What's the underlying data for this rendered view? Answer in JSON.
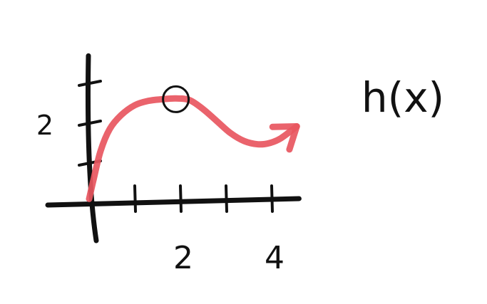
{
  "chart_data": {
    "type": "line",
    "title": "",
    "xlabel": "",
    "ylabel": "",
    "xlim": [
      0,
      4.6
    ],
    "ylim": [
      0,
      3.0
    ],
    "x_ticks": [
      1,
      2,
      3,
      4
    ],
    "x_tick_labels": [
      {
        "x": 2,
        "label": "2"
      },
      {
        "x": 4,
        "label": "4"
      }
    ],
    "y_ticks": [
      1,
      2,
      3
    ],
    "y_tick_labels": [
      {
        "y": 2,
        "label": "2"
      }
    ],
    "series": [
      {
        "name": "h(x)",
        "color": "#e8565f",
        "x": [
          0,
          0.1,
          0.25,
          0.45,
          0.7,
          1.0,
          1.3,
          1.6,
          1.9,
          2.2,
          2.5,
          2.8,
          3.1,
          3.4,
          3.7,
          3.95,
          4.2,
          4.55
        ],
        "y": [
          0.1,
          0.6,
          1.3,
          1.85,
          2.2,
          2.45,
          2.56,
          2.6,
          2.62,
          2.58,
          2.35,
          2.05,
          1.75,
          1.55,
          1.47,
          1.5,
          1.62,
          1.92
        ],
        "end_arrow": true
      }
    ],
    "annotations": [
      {
        "type": "circle",
        "label": "local-maximum",
        "x": 1.9,
        "y": 2.6
      }
    ],
    "function_label": "h(x)",
    "grid": false,
    "legend": "none"
  }
}
